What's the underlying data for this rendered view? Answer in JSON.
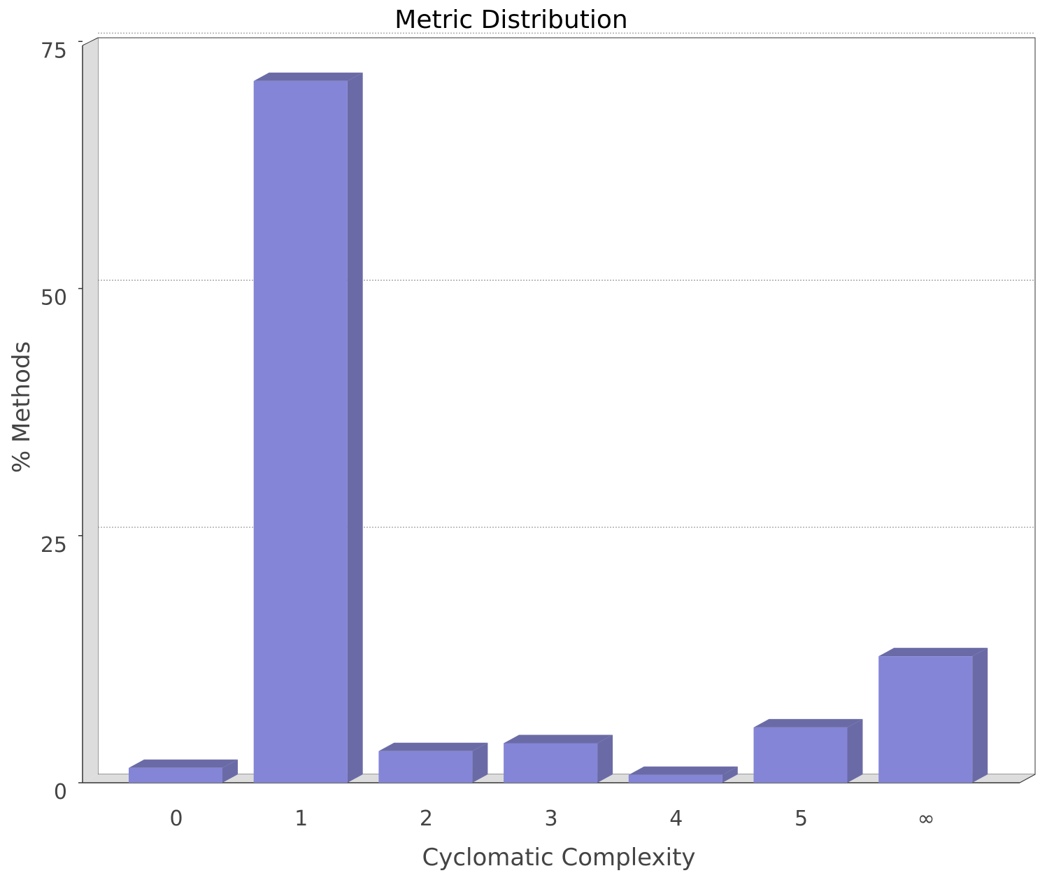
{
  "colors": {
    "bar_front": "#8485d6",
    "bar_side": "#6a6ba6",
    "bar_top": "#6a6ba6",
    "wall": "#dddddd",
    "frame": "#333333",
    "grid": "#888888",
    "text": "#444444"
  },
  "chart_data": {
    "type": "bar",
    "title": "Metric Distribution",
    "xlabel": "Cyclomatic Complexity",
    "ylabel": "% Methods",
    "categories": [
      "0",
      "1",
      "2",
      "3",
      "4",
      "5",
      "∞"
    ],
    "values": [
      1.5,
      71,
      3.2,
      4,
      0.8,
      5.6,
      12.8
    ],
    "yticks": [
      "0",
      "25",
      "50",
      "75"
    ],
    "ylim": [
      0,
      75
    ],
    "grid": true
  }
}
